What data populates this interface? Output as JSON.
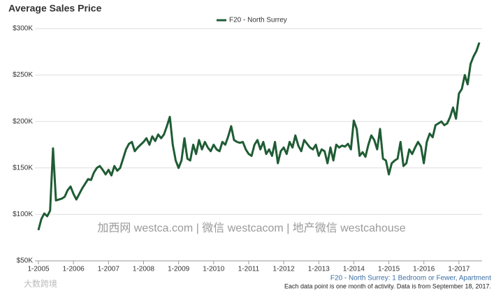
{
  "chart_data": {
    "type": "line",
    "title": "Average Sales Price",
    "legend_position": "top",
    "series": [
      {
        "name": "F20 - North Surrey",
        "color": "#1f5c34",
        "values": [
          83,
          95,
          101,
          98,
          104,
          171,
          115,
          116,
          117,
          119,
          126,
          130,
          122,
          116,
          122,
          128,
          133,
          138,
          137,
          145,
          150,
          152,
          148,
          143,
          148,
          142,
          152,
          147,
          150,
          160,
          170,
          176,
          178,
          168,
          172,
          175,
          178,
          182,
          175,
          184,
          179,
          186,
          182,
          186,
          195,
          205,
          175,
          158,
          150,
          158,
          182,
          160,
          158,
          175,
          165,
          180,
          170,
          178,
          172,
          168,
          175,
          170,
          168,
          178,
          175,
          184,
          195,
          180,
          178,
          177,
          178,
          170,
          165,
          163,
          175,
          180,
          170,
          178,
          165,
          170,
          163,
          178,
          155,
          168,
          172,
          165,
          178,
          172,
          185,
          174,
          168,
          180,
          176,
          172,
          170,
          175,
          163,
          170,
          168,
          155,
          172,
          158,
          175,
          172,
          174,
          173,
          176,
          170,
          201,
          192,
          163,
          167,
          162,
          175,
          185,
          180,
          170,
          192,
          160,
          158,
          143,
          155,
          158,
          160,
          178,
          152,
          155,
          170,
          165,
          172,
          178,
          173,
          155,
          178,
          187,
          183,
          196,
          198,
          200,
          196,
          198,
          205,
          215,
          203,
          230,
          235,
          250,
          240,
          262,
          270,
          276,
          285
        ]
      }
    ],
    "x": [
      2005,
      2005.083,
      2005.167,
      2005.25,
      2005.333,
      2005.417,
      2005.5,
      2005.583,
      2005.667,
      2005.75,
      2005.833,
      2005.917,
      2006,
      2006.083,
      2006.167,
      2006.25,
      2006.333,
      2006.417,
      2006.5,
      2006.583,
      2006.667,
      2006.75,
      2006.833,
      2006.917,
      2007,
      2007.083,
      2007.167,
      2007.25,
      2007.333,
      2007.417,
      2007.5,
      2007.583,
      2007.667,
      2007.75,
      2007.833,
      2007.917,
      2008,
      2008.083,
      2008.167,
      2008.25,
      2008.333,
      2008.417,
      2008.5,
      2008.583,
      2008.667,
      2008.75,
      2008.833,
      2008.917,
      2009,
      2009.083,
      2009.167,
      2009.25,
      2009.333,
      2009.417,
      2009.5,
      2009.583,
      2009.667,
      2009.75,
      2009.833,
      2009.917,
      2010,
      2010.083,
      2010.167,
      2010.25,
      2010.333,
      2010.417,
      2010.5,
      2010.583,
      2010.667,
      2010.75,
      2010.833,
      2010.917,
      2011,
      2011.083,
      2011.167,
      2011.25,
      2011.333,
      2011.417,
      2011.5,
      2011.583,
      2011.667,
      2011.75,
      2011.833,
      2011.917,
      2012,
      2012.083,
      2012.167,
      2012.25,
      2012.333,
      2012.417,
      2012.5,
      2012.583,
      2012.667,
      2012.75,
      2012.833,
      2012.917,
      2013,
      2013.083,
      2013.167,
      2013.25,
      2013.333,
      2013.417,
      2013.5,
      2013.583,
      2013.667,
      2013.75,
      2013.833,
      2013.917,
      2014,
      2014.083,
      2014.167,
      2014.25,
      2014.333,
      2014.417,
      2014.5,
      2014.583,
      2014.667,
      2014.75,
      2014.833,
      2014.917,
      2015,
      2015.083,
      2015.167,
      2015.25,
      2015.333,
      2015.417,
      2015.5,
      2015.583,
      2015.667,
      2015.75,
      2015.833,
      2015.917,
      2016,
      2016.083,
      2016.167,
      2016.25,
      2016.333,
      2016.417,
      2016.5,
      2016.583,
      2016.667,
      2016.75,
      2016.833,
      2016.917,
      2017,
      2017.083,
      2017.167,
      2017.25,
      2017.333,
      2017.417,
      2017.5,
      2017.583
    ],
    "xlim": [
      2004.9,
      2017.66
    ],
    "xticks": [
      {
        "value": 2005,
        "label": "1-2005"
      },
      {
        "value": 2006,
        "label": "1-2006"
      },
      {
        "value": 2007,
        "label": "1-2007"
      },
      {
        "value": 2008,
        "label": "1-2008"
      },
      {
        "value": 2009,
        "label": "1-2009"
      },
      {
        "value": 2010,
        "label": "1-2010"
      },
      {
        "value": 2011,
        "label": "1-2011"
      },
      {
        "value": 2012,
        "label": "1-2012"
      },
      {
        "value": 2013,
        "label": "1-2013"
      },
      {
        "value": 2014,
        "label": "1-2014"
      },
      {
        "value": 2015,
        "label": "1-2015"
      },
      {
        "value": 2016,
        "label": "1-2016"
      },
      {
        "value": 2017,
        "label": "1-2017"
      }
    ],
    "ylim": [
      50,
      300
    ],
    "yticks": [
      {
        "value": 50,
        "label": "$50K"
      },
      {
        "value": 100,
        "label": "$100K"
      },
      {
        "value": 150,
        "label": "$150K"
      },
      {
        "value": 200,
        "label": "$200K"
      },
      {
        "value": 250,
        "label": "$250K"
      },
      {
        "value": 300,
        "label": "$300K"
      }
    ],
    "grid": true,
    "subtitle": "F20 - North Surrey: 1 Bedroom or Fewer, Apartment",
    "note": "Each data point is one month of activity. Data is from September 18, 2017.",
    "watermark": "加西网 westca.com | 微信 westcacom | 地产微信 westcahouse",
    "logo": "大数跨境"
  }
}
